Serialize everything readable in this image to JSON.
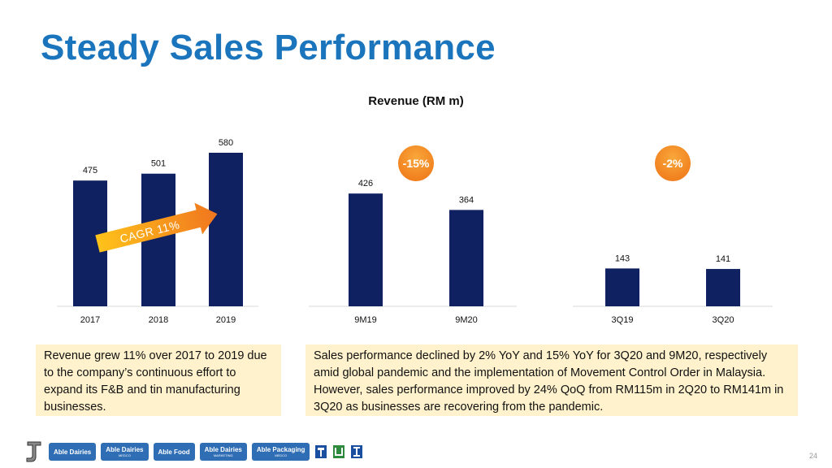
{
  "page": {
    "title": "Steady Sales Performance",
    "page_number": "24"
  },
  "notes": {
    "left": "Revenue grew 11% over 2017 to 2019 due to the company’s continuous effort to expand its F&B and tin manufacturing businesses.",
    "right": "Sales performance declined by 2% YoY and 15% YoY for 3Q20 and 9M20, respectively amid global pandemic and the implementation of Movement Control Order in Malaysia. However, sales performance improved by 24% QoQ from RM115m in 2Q20 to RM141m in 3Q20 as businesses are recovering from the pandemic."
  },
  "logos": [
    {
      "label": "Able Dairies",
      "sub": ""
    },
    {
      "label": "Able Dairies",
      "sub": "MEDCO"
    },
    {
      "label": "Able Food",
      "sub": ""
    },
    {
      "label": "Able Dairies",
      "sub": "MARKETING"
    },
    {
      "label": "Able Packaging",
      "sub": "MEDCO"
    }
  ],
  "chart_data": [
    {
      "type": "bar",
      "title": "Revenue (RM m)",
      "categories": [
        "2017",
        "2018",
        "2019"
      ],
      "values": [
        475,
        501,
        580
      ],
      "annotation": "CAGR 11%",
      "bar_color": "#0f2161"
    },
    {
      "type": "bar",
      "categories": [
        "9M19",
        "9M20"
      ],
      "values": [
        426,
        364
      ],
      "annotation": "-15%",
      "bar_color": "#0f2161"
    },
    {
      "type": "bar",
      "categories": [
        "3Q19",
        "3Q20"
      ],
      "values": [
        143,
        141
      ],
      "annotation": "-2%",
      "bar_color": "#0f2161"
    }
  ]
}
